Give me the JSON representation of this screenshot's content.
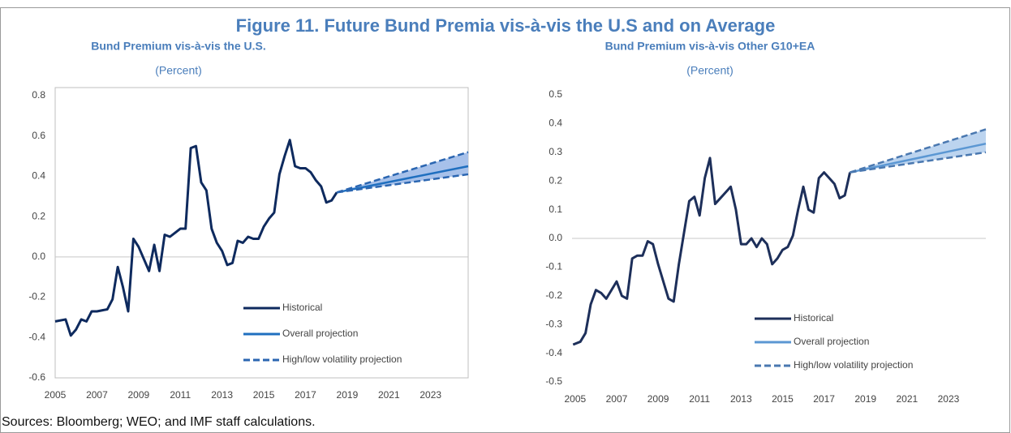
{
  "figure_title": "Figure 11. Future Bund Premia vis-à-vis the U.S and on Average",
  "source": "Sources: Bloomberg; WEO; and IMF staff calculations.",
  "chart_data": [
    {
      "type": "line",
      "title": "Bund Premium vis-à-vis the U.S.",
      "subtitle": "(Percent)",
      "xlim": [
        2005,
        2024.8
      ],
      "xticks": [
        2005,
        2007,
        2009,
        2011,
        2013,
        2015,
        2017,
        2019,
        2021,
        2023
      ],
      "ylim": [
        -0.6,
        0.8
      ],
      "yticks": [
        {
          "value": -0.6,
          "label": "-0.6"
        },
        {
          "value": -0.4,
          "label": "-0.4"
        },
        {
          "value": -0.2,
          "label": "-0.2"
        },
        {
          "value": 0,
          "label": "0.0"
        },
        0.2,
        0.4,
        0.6,
        0.8
      ],
      "frame": true,
      "zero_line": true,
      "series": [
        {
          "name": "Historical",
          "color": "#0e2a5e",
          "style": "solid",
          "x": [
            2005,
            2005.5,
            2005.75,
            2006,
            2006.25,
            2006.5,
            2006.75,
            2007,
            2007.5,
            2007.75,
            2008,
            2008.25,
            2008.5,
            2008.75,
            2009,
            2009.5,
            2009.75,
            2010,
            2010.25,
            2010.5,
            2010.75,
            2011,
            2011.25,
            2011.5,
            2011.75,
            2012,
            2012.25,
            2012.5,
            2012.75,
            2013,
            2013.25,
            2013.5,
            2013.75,
            2014,
            2014.25,
            2014.5,
            2014.75,
            2015,
            2015.25,
            2015.5,
            2015.75,
            2016,
            2016.25,
            2016.5,
            2016.75,
            2017,
            2017.25,
            2017.5,
            2017.75,
            2018,
            2018.25,
            2018.5
          ],
          "values": [
            -0.32,
            -0.31,
            -0.39,
            -0.36,
            -0.31,
            -0.32,
            -0.27,
            -0.27,
            -0.26,
            -0.21,
            -0.05,
            -0.15,
            -0.27,
            0.09,
            0.05,
            -0.07,
            0.06,
            -0.07,
            0.11,
            0.1,
            0.12,
            0.14,
            0.14,
            0.54,
            0.55,
            0.37,
            0.33,
            0.14,
            0.07,
            0.03,
            -0.04,
            -0.03,
            0.08,
            0.07,
            0.1,
            0.09,
            0.09,
            0.15,
            0.19,
            0.22,
            0.41,
            0.5,
            0.58,
            0.45,
            0.44,
            0.44,
            0.42,
            0.38,
            0.35,
            0.27,
            0.28,
            0.32
          ]
        },
        {
          "name": "Overall projection",
          "color": "#1f6fbf",
          "style": "solid",
          "x": [
            2018.5,
            2024.8
          ],
          "values": [
            0.32,
            0.45
          ]
        },
        {
          "name": "High/low volatility projection",
          "color": "#2b66b1",
          "style": "dashed",
          "band_color": "#a7c1ea",
          "x": [
            2018.5,
            2024.8
          ],
          "values": [
            0.32,
            0.52
          ],
          "lower": [
            0.32,
            0.41
          ]
        }
      ]
    },
    {
      "type": "line",
      "title": "Bund Premium vis-à-vis Other G10+EA",
      "subtitle": "(Percent)",
      "xlim": [
        2004.85,
        2024.8
      ],
      "xticks": [
        2005,
        2007,
        2009,
        2011,
        2013,
        2015,
        2017,
        2019,
        2021,
        2023
      ],
      "ylim": [
        -0.5,
        0.5
      ],
      "yticks": [
        -0.5,
        -0.4,
        -0.3,
        -0.2,
        -0.1,
        {
          "value": 0,
          "label": "0.0"
        },
        0.1,
        0.2,
        0.3,
        0.4,
        0.5
      ],
      "frame": false,
      "zero_line": true,
      "series": [
        {
          "name": "Historical",
          "color": "#1d2f5a",
          "style": "solid",
          "x": [
            2004.9,
            2005.25,
            2005.5,
            2005.75,
            2006,
            2006.25,
            2006.5,
            2006.75,
            2007,
            2007.25,
            2007.5,
            2007.75,
            2008,
            2008.25,
            2008.5,
            2008.75,
            2009,
            2009.25,
            2009.5,
            2009.75,
            2010,
            2010.25,
            2010.5,
            2010.75,
            2011,
            2011.25,
            2011.5,
            2011.75,
            2012,
            2012.25,
            2012.5,
            2012.75,
            2013,
            2013.25,
            2013.5,
            2013.75,
            2014,
            2014.25,
            2014.5,
            2014.75,
            2015,
            2015.25,
            2015.5,
            2015.75,
            2016,
            2016.25,
            2016.5,
            2016.75,
            2017,
            2017.25,
            2017.5,
            2017.75,
            2018,
            2018.25
          ],
          "values": [
            -0.37,
            -0.36,
            -0.33,
            -0.23,
            -0.18,
            -0.19,
            -0.21,
            -0.18,
            -0.15,
            -0.2,
            -0.21,
            -0.07,
            -0.06,
            -0.06,
            -0.01,
            -0.02,
            -0.09,
            -0.15,
            -0.21,
            -0.22,
            -0.09,
            0.02,
            0.13,
            0.145,
            0.08,
            0.21,
            0.28,
            0.12,
            0.14,
            0.16,
            0.18,
            0.1,
            -0.02,
            -0.02,
            0,
            -0.03,
            0,
            -0.02,
            -0.09,
            -0.07,
            -0.04,
            -0.03,
            0.01,
            0.1,
            0.18,
            0.1,
            0.09,
            0.21,
            0.23,
            0.21,
            0.19,
            0.14,
            0.15,
            0.23
          ]
        },
        {
          "name": "Overall projection",
          "color": "#5b97d3",
          "style": "solid",
          "x": [
            2018.25,
            2024.8
          ],
          "values": [
            0.23,
            0.33
          ]
        },
        {
          "name": "High/low volatility projection",
          "color": "#4a78b0",
          "style": "dashed",
          "band_color": "#bcd4ef",
          "x": [
            2018.25,
            2024.8
          ],
          "values": [
            0.23,
            0.38
          ],
          "lower": [
            0.23,
            0.3
          ]
        }
      ]
    }
  ]
}
